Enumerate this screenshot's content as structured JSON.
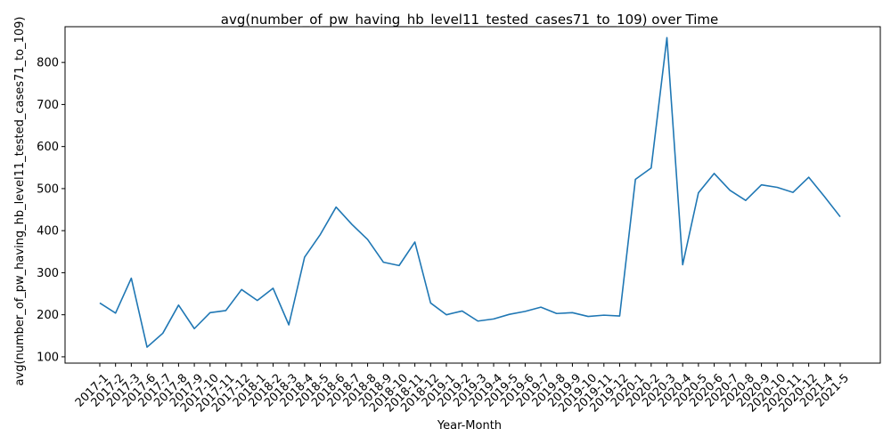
{
  "chart_data": {
    "type": "line",
    "title": "avg(number_of_pw_having_hb_level11_tested_cases71_to_109) over Time",
    "xlabel": "Year-Month",
    "ylabel": "avg(number_of_pw_having_hb_level11_tested_cases71_to_109)",
    "ylim": [
      85,
      885
    ],
    "yticks": [
      100,
      200,
      300,
      400,
      500,
      600,
      700,
      800
    ],
    "grid": false,
    "line_color": "#1f77b4",
    "categories": [
      "2017-1",
      "2017-2",
      "2017-3",
      "2017-6",
      "2017-7",
      "2017-8",
      "2017-9",
      "2017-10",
      "2017-11",
      "2017-12",
      "2018-1",
      "2018-2",
      "2018-3",
      "2018-4",
      "2018-5",
      "2018-6",
      "2018-7",
      "2018-8",
      "2018-9",
      "2018-10",
      "2018-11",
      "2018-12",
      "2019-1",
      "2019-2",
      "2019-3",
      "2019-4",
      "2019-5",
      "2019-6",
      "2019-7",
      "2019-8",
      "2019-9",
      "2019-10",
      "2019-11",
      "2019-12",
      "2020-1",
      "2020-2",
      "2020-3",
      "2020-4",
      "2020-5",
      "2020-6",
      "2020-7",
      "2020-8",
      "2020-9",
      "2020-10",
      "2020-11",
      "2020-12",
      "2021-4",
      "2021-5"
    ],
    "series": [
      {
        "values": [
          228,
          204,
          287,
          123,
          156,
          223,
          167,
          205,
          210,
          260,
          234,
          263,
          176,
          337,
          391,
          456,
          415,
          379,
          325,
          317,
          373,
          228,
          200,
          209,
          185,
          190,
          201,
          208,
          218,
          203,
          205,
          196,
          199,
          197,
          522,
          549,
          859,
          319,
          490,
          536,
          496,
          472,
          509,
          503,
          491,
          527,
          481,
          433
        ]
      }
    ]
  }
}
